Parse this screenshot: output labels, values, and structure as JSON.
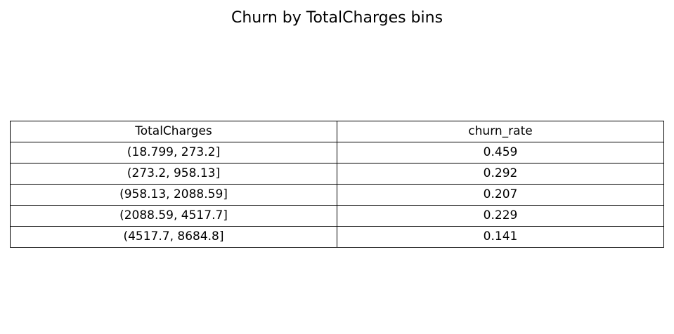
{
  "chart_data": {
    "type": "table",
    "title": "Churn by TotalCharges bins",
    "columns": [
      "TotalCharges",
      "churn_rate"
    ],
    "rows": [
      [
        "(18.799, 273.2]",
        "0.459"
      ],
      [
        "(273.2, 958.13]",
        "0.292"
      ],
      [
        "(958.13, 2088.59]",
        "0.207"
      ],
      [
        "(2088.59, 4517.7]",
        "0.229"
      ],
      [
        "(4517.7, 8684.8]",
        "0.141"
      ]
    ]
  }
}
